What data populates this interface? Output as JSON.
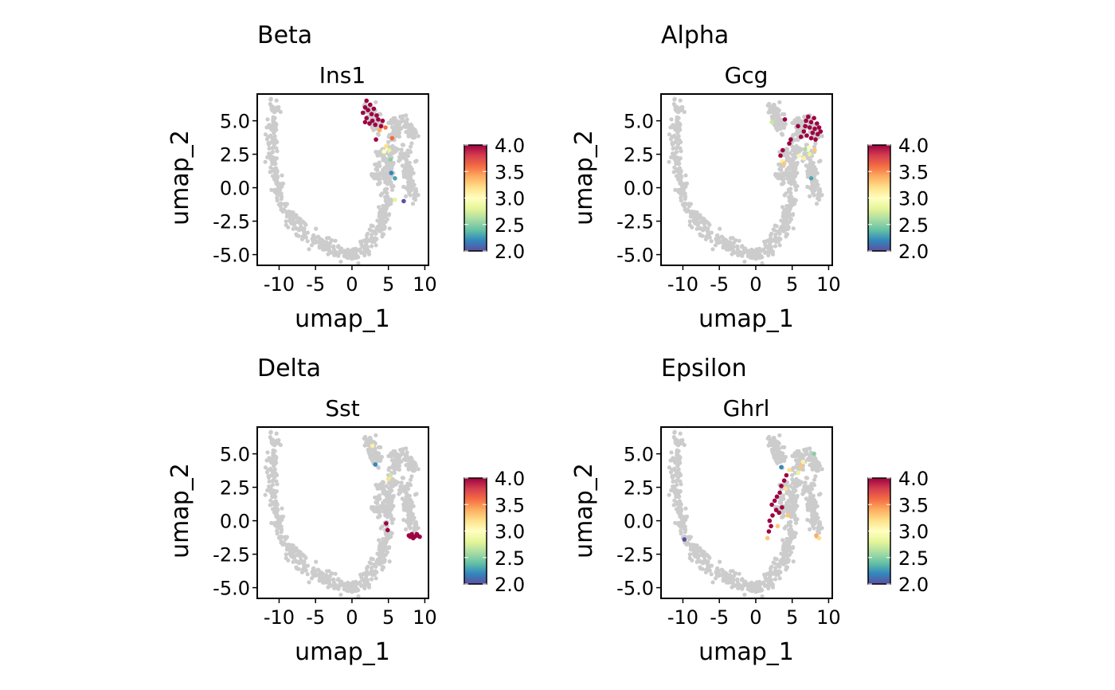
{
  "chart_data": [
    {
      "type": "scatter",
      "group": "Beta",
      "title": "Ins1",
      "xlabel": "umap_1",
      "ylabel": "umap_2",
      "xlim": [
        -13,
        10.5
      ],
      "ylim": [
        -5.8,
        7.0
      ],
      "xticks": [
        -10,
        -5,
        0,
        5,
        10
      ],
      "xtick_labels": [
        "-10",
        "-5",
        "0",
        "5",
        "10"
      ],
      "yticks": [
        -5,
        -2.5,
        0,
        2.5,
        5
      ],
      "ytick_labels": [
        "-5.0",
        "-2.5",
        "0.0",
        "2.5",
        "5.0"
      ],
      "colorbar": {
        "min": 2.0,
        "max": 4.0,
        "ticks": [
          2.0,
          2.5,
          3.0,
          3.5,
          4.0
        ],
        "tick_labels": [
          "2.0",
          "2.5",
          "3.0",
          "3.5",
          "4.0"
        ]
      },
      "background_color": "#cccccc",
      "expressing_cells": [
        {
          "x": 2.0,
          "y": 6.5,
          "v": 4.0
        },
        {
          "x": 2.5,
          "y": 6.2,
          "v": 4.0
        },
        {
          "x": 1.8,
          "y": 6.0,
          "v": 4.0
        },
        {
          "x": 2.2,
          "y": 5.8,
          "v": 4.0
        },
        {
          "x": 3.0,
          "y": 5.9,
          "v": 4.0
        },
        {
          "x": 1.5,
          "y": 5.6,
          "v": 4.0
        },
        {
          "x": 2.7,
          "y": 5.5,
          "v": 4.0
        },
        {
          "x": 3.4,
          "y": 5.4,
          "v": 4.0
        },
        {
          "x": 2.0,
          "y": 5.2,
          "v": 4.0
        },
        {
          "x": 2.8,
          "y": 5.0,
          "v": 4.0
        },
        {
          "x": 3.6,
          "y": 5.1,
          "v": 4.0
        },
        {
          "x": 4.2,
          "y": 5.0,
          "v": 4.0
        },
        {
          "x": 2.4,
          "y": 4.8,
          "v": 4.0
        },
        {
          "x": 3.2,
          "y": 4.7,
          "v": 4.0
        },
        {
          "x": 4.0,
          "y": 4.6,
          "v": 4.0
        },
        {
          "x": 1.8,
          "y": 4.9,
          "v": 4.0
        },
        {
          "x": 3.8,
          "y": 4.3,
          "v": 3.4
        },
        {
          "x": 4.6,
          "y": 4.5,
          "v": 3.6
        },
        {
          "x": 3.3,
          "y": 3.6,
          "v": 4.0
        },
        {
          "x": 5.5,
          "y": 3.7,
          "v": 3.6
        },
        {
          "x": 4.7,
          "y": 3.1,
          "v": 3.2
        },
        {
          "x": 5.1,
          "y": 2.8,
          "v": 2.8
        },
        {
          "x": 4.4,
          "y": 2.7,
          "v": 3.0
        },
        {
          "x": 5.3,
          "y": 2.1,
          "v": 2.5
        },
        {
          "x": 5.4,
          "y": 1.1,
          "v": 2.2
        },
        {
          "x": 5.9,
          "y": 0.7,
          "v": 2.3
        },
        {
          "x": 5.9,
          "y": -0.9,
          "v": 2.8
        },
        {
          "x": 7.1,
          "y": -1.0,
          "v": 2.0
        }
      ]
    },
    {
      "type": "scatter",
      "group": "Alpha",
      "title": "Gcg",
      "xlabel": "umap_1",
      "ylabel": "umap_2",
      "xlim": [
        -13,
        10.5
      ],
      "ylim": [
        -5.8,
        7.0
      ],
      "xticks": [
        -10,
        -5,
        0,
        5,
        10
      ],
      "xtick_labels": [
        "-10",
        "-5",
        "0",
        "5",
        "10"
      ],
      "yticks": [
        -5,
        -2.5,
        0,
        2.5,
        5
      ],
      "ytick_labels": [
        "-5.0",
        "-2.5",
        "0.0",
        "2.5",
        "5.0"
      ],
      "colorbar": {
        "min": 2.0,
        "max": 4.0,
        "ticks": [
          2.0,
          2.5,
          3.0,
          3.5,
          4.0
        ],
        "tick_labels": [
          "2.0",
          "2.5",
          "3.0",
          "3.5",
          "4.0"
        ]
      },
      "background_color": "#cccccc",
      "expressing_cells": [
        {
          "x": 7.2,
          "y": 5.3,
          "v": 4.0
        },
        {
          "x": 8.0,
          "y": 5.2,
          "v": 4.0
        },
        {
          "x": 6.9,
          "y": 5.0,
          "v": 4.0
        },
        {
          "x": 7.6,
          "y": 4.9,
          "v": 4.0
        },
        {
          "x": 8.4,
          "y": 4.8,
          "v": 4.0
        },
        {
          "x": 6.8,
          "y": 4.6,
          "v": 4.0
        },
        {
          "x": 7.4,
          "y": 4.5,
          "v": 4.0
        },
        {
          "x": 8.1,
          "y": 4.4,
          "v": 4.0
        },
        {
          "x": 8.7,
          "y": 4.5,
          "v": 4.0
        },
        {
          "x": 6.6,
          "y": 4.2,
          "v": 4.0
        },
        {
          "x": 7.8,
          "y": 4.1,
          "v": 4.0
        },
        {
          "x": 8.5,
          "y": 4.0,
          "v": 4.0
        },
        {
          "x": 7.0,
          "y": 3.9,
          "v": 4.0
        },
        {
          "x": 6.2,
          "y": 3.8,
          "v": 4.0
        },
        {
          "x": 7.6,
          "y": 3.7,
          "v": 4.0
        },
        {
          "x": 5.8,
          "y": 4.6,
          "v": 4.0
        },
        {
          "x": 8.9,
          "y": 4.2,
          "v": 4.0
        },
        {
          "x": 8.2,
          "y": 3.6,
          "v": 4.0
        },
        {
          "x": 4.0,
          "y": 5.1,
          "v": 4.0
        },
        {
          "x": 4.8,
          "y": 3.6,
          "v": 4.0
        },
        {
          "x": 4.6,
          "y": 3.3,
          "v": 4.0
        },
        {
          "x": 3.7,
          "y": 2.8,
          "v": 4.0
        },
        {
          "x": 3.4,
          "y": 2.4,
          "v": 4.0
        },
        {
          "x": 3.6,
          "y": 2.0,
          "v": 3.1
        },
        {
          "x": 3.9,
          "y": 1.8,
          "v": 3.3
        },
        {
          "x": 2.2,
          "y": 4.9,
          "v": 2.7
        },
        {
          "x": 6.0,
          "y": 2.4,
          "v": 2.9
        },
        {
          "x": 6.8,
          "y": 2.9,
          "v": 2.6
        },
        {
          "x": 7.3,
          "y": 3.0,
          "v": 3.0
        },
        {
          "x": 8.1,
          "y": 2.8,
          "v": 3.3
        },
        {
          "x": 7.4,
          "y": 2.5,
          "v": 2.8
        },
        {
          "x": 6.6,
          "y": 2.2,
          "v": 3.1
        },
        {
          "x": 7.6,
          "y": 0.7,
          "v": 2.3
        }
      ]
    },
    {
      "type": "scatter",
      "group": "Delta",
      "title": "Sst",
      "xlabel": "umap_1",
      "ylabel": "umap_2",
      "xlim": [
        -13,
        10.5
      ],
      "ylim": [
        -5.8,
        7.0
      ],
      "xticks": [
        -10,
        -5,
        0,
        5,
        10
      ],
      "xtick_labels": [
        "-10",
        "-5",
        "0",
        "5",
        "10"
      ],
      "yticks": [
        -5,
        -2.5,
        0,
        2.5,
        5
      ],
      "ytick_labels": [
        "-5.0",
        "-2.5",
        "0.0",
        "2.5",
        "5.0"
      ],
      "colorbar": {
        "min": 2.0,
        "max": 4.0,
        "ticks": [
          2.0,
          2.5,
          3.0,
          3.5,
          4.0
        ],
        "tick_labels": [
          "2.0",
          "2.5",
          "3.0",
          "3.5",
          "4.0"
        ]
      },
      "background_color": "#cccccc",
      "expressing_cells": [
        {
          "x": 2.8,
          "y": 5.6,
          "v": 3.1
        },
        {
          "x": 3.2,
          "y": 4.2,
          "v": 2.2
        },
        {
          "x": 5.3,
          "y": 3.4,
          "v": 2.7
        },
        {
          "x": 5.0,
          "y": 3.1,
          "v": 3.2
        },
        {
          "x": 4.7,
          "y": -0.2,
          "v": 4.0
        },
        {
          "x": 4.9,
          "y": -0.7,
          "v": 4.0
        },
        {
          "x": 7.8,
          "y": -1.1,
          "v": 4.0
        },
        {
          "x": 8.2,
          "y": -1.0,
          "v": 4.0
        },
        {
          "x": 8.6,
          "y": -1.2,
          "v": 4.0
        },
        {
          "x": 9.0,
          "y": -1.1,
          "v": 4.0
        },
        {
          "x": 9.3,
          "y": -1.2,
          "v": 4.0
        },
        {
          "x": 8.4,
          "y": -1.3,
          "v": 4.0
        },
        {
          "x": 8.9,
          "y": -1.0,
          "v": 4.0
        },
        {
          "x": 8.0,
          "y": -1.2,
          "v": 4.0
        }
      ]
    },
    {
      "type": "scatter",
      "group": "Epsilon",
      "title": "Ghrl",
      "xlabel": "umap_1",
      "ylabel": "umap_2",
      "xlim": [
        -13,
        10.5
      ],
      "ylim": [
        -5.8,
        7.0
      ],
      "xticks": [
        -10,
        -5,
        0,
        5,
        10
      ],
      "xtick_labels": [
        "-10",
        "-5",
        "0",
        "5",
        "10"
      ],
      "yticks": [
        -5,
        -2.5,
        0,
        2.5,
        5
      ],
      "ytick_labels": [
        "-5.0",
        "-2.5",
        "0.0",
        "2.5",
        "5.0"
      ],
      "colorbar": {
        "min": 2.0,
        "max": 4.0,
        "ticks": [
          2.0,
          2.5,
          3.0,
          3.5,
          4.0
        ],
        "tick_labels": [
          "2.0",
          "2.5",
          "3.0",
          "3.5",
          "4.0"
        ]
      },
      "background_color": "#cccccc",
      "expressing_cells": [
        {
          "x": 6.5,
          "y": 4.4,
          "v": 3.1
        },
        {
          "x": 6.2,
          "y": 4.0,
          "v": 3.3
        },
        {
          "x": 8.0,
          "y": 5.0,
          "v": 2.5
        },
        {
          "x": 3.5,
          "y": 4.0,
          "v": 2.2
        },
        {
          "x": 4.6,
          "y": 3.8,
          "v": 3.2
        },
        {
          "x": 5.8,
          "y": 3.6,
          "v": 2.8
        },
        {
          "x": 4.2,
          "y": 3.4,
          "v": 4.0
        },
        {
          "x": 3.9,
          "y": 3.0,
          "v": 4.0
        },
        {
          "x": 3.5,
          "y": 2.6,
          "v": 4.0
        },
        {
          "x": 3.3,
          "y": 2.1,
          "v": 4.0
        },
        {
          "x": 2.9,
          "y": 1.8,
          "v": 4.0
        },
        {
          "x": 2.6,
          "y": 1.5,
          "v": 4.0
        },
        {
          "x": 2.2,
          "y": 1.2,
          "v": 4.0
        },
        {
          "x": 2.8,
          "y": 0.8,
          "v": 4.0
        },
        {
          "x": 2.3,
          "y": 0.4,
          "v": 4.0
        },
        {
          "x": 1.9,
          "y": 0.0,
          "v": 4.0
        },
        {
          "x": 2.1,
          "y": -0.4,
          "v": 4.0
        },
        {
          "x": 1.8,
          "y": -0.8,
          "v": 4.0
        },
        {
          "x": 3.2,
          "y": 0.6,
          "v": 4.0
        },
        {
          "x": 3.6,
          "y": 1.0,
          "v": 4.0
        },
        {
          "x": 4.1,
          "y": 2.4,
          "v": 3.2
        },
        {
          "x": 3.0,
          "y": -0.4,
          "v": 3.3
        },
        {
          "x": 4.4,
          "y": 0.4,
          "v": 3.3
        },
        {
          "x": 1.6,
          "y": -1.3,
          "v": 3.3
        },
        {
          "x": -9.8,
          "y": -1.4,
          "v": 2.0
        },
        {
          "x": 8.3,
          "y": -1.1,
          "v": 3.4
        },
        {
          "x": 8.7,
          "y": -1.3,
          "v": 3.2
        }
      ]
    }
  ],
  "groups": [
    "Beta",
    "Alpha",
    "Delta",
    "Epsilon"
  ]
}
